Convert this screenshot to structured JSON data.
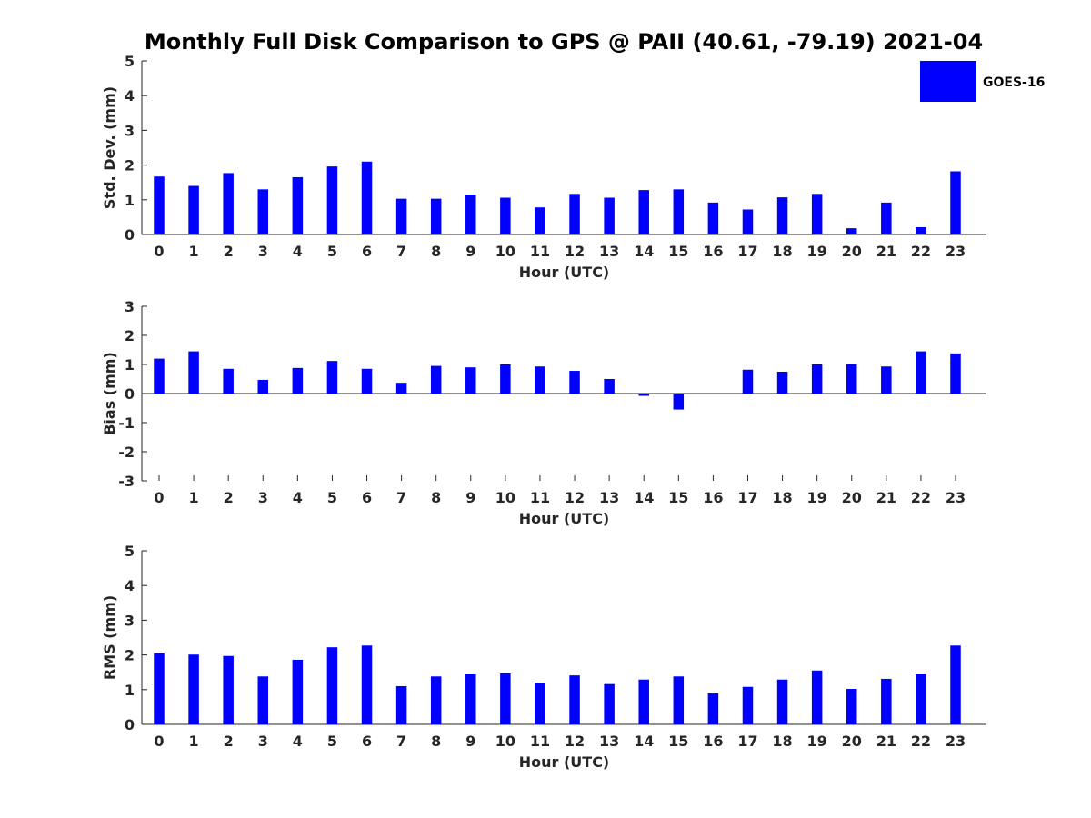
{
  "title": "Monthly Full Disk Comparison to GPS @ PAII (40.61, -79.19) 2021-04",
  "legend": {
    "label": "GOES-16",
    "color": "#0000ff"
  },
  "chart_data": [
    {
      "type": "bar",
      "categories": [
        "0",
        "1",
        "2",
        "3",
        "4",
        "5",
        "6",
        "7",
        "8",
        "9",
        "10",
        "11",
        "12",
        "13",
        "14",
        "15",
        "16",
        "17",
        "18",
        "19",
        "20",
        "21",
        "22",
        "23"
      ],
      "series": [
        {
          "name": "GOES-16",
          "color": "#0000ff",
          "values": [
            1.67,
            1.4,
            1.77,
            1.3,
            1.65,
            1.96,
            2.1,
            1.03,
            1.03,
            1.15,
            1.06,
            0.78,
            1.17,
            1.06,
            1.28,
            1.3,
            0.92,
            0.72,
            1.07,
            1.17,
            0.18,
            0.92,
            0.21,
            1.82
          ]
        }
      ],
      "xlabel": "Hour (UTC)",
      "ylabel": "Std. Dev. (mm)",
      "ylim": [
        0,
        5
      ],
      "yticks": [
        "0",
        "1",
        "2",
        "3",
        "4",
        "5"
      ],
      "grid": false,
      "legend_position": "top-right"
    },
    {
      "type": "bar",
      "categories": [
        "0",
        "1",
        "2",
        "3",
        "4",
        "5",
        "6",
        "7",
        "8",
        "9",
        "10",
        "11",
        "12",
        "13",
        "14",
        "15",
        "16",
        "17",
        "18",
        "19",
        "20",
        "21",
        "22",
        "23"
      ],
      "series": [
        {
          "name": "GOES-16",
          "color": "#0000ff",
          "values": [
            1.2,
            1.45,
            0.85,
            0.47,
            0.88,
            1.12,
            0.85,
            0.37,
            0.95,
            0.9,
            1.0,
            0.93,
            0.78,
            0.5,
            -0.08,
            -0.55,
            0.0,
            0.82,
            0.75,
            1.0,
            1.02,
            0.93,
            1.45,
            1.38
          ]
        }
      ],
      "xlabel": "Hour (UTC)",
      "ylabel": "Bias (mm)",
      "ylim": [
        -3,
        3
      ],
      "yticks": [
        "-3",
        "-2",
        "-1",
        "0",
        "1",
        "2",
        "3"
      ],
      "grid": false
    },
    {
      "type": "bar",
      "categories": [
        "0",
        "1",
        "2",
        "3",
        "4",
        "5",
        "6",
        "7",
        "8",
        "9",
        "10",
        "11",
        "12",
        "13",
        "14",
        "15",
        "16",
        "17",
        "18",
        "19",
        "20",
        "21",
        "22",
        "23"
      ],
      "series": [
        {
          "name": "GOES-16",
          "color": "#0000ff",
          "values": [
            2.05,
            2.01,
            1.97,
            1.38,
            1.86,
            2.22,
            2.27,
            1.1,
            1.38,
            1.44,
            1.47,
            1.2,
            1.41,
            1.16,
            1.29,
            1.38,
            0.89,
            1.08,
            1.29,
            1.55,
            1.02,
            1.31,
            1.44,
            2.27
          ]
        }
      ],
      "xlabel": "Hour (UTC)",
      "ylabel": "RMS (mm)",
      "ylim": [
        0,
        5
      ],
      "yticks": [
        "0",
        "1",
        "2",
        "3",
        "4",
        "5"
      ],
      "grid": false
    }
  ]
}
